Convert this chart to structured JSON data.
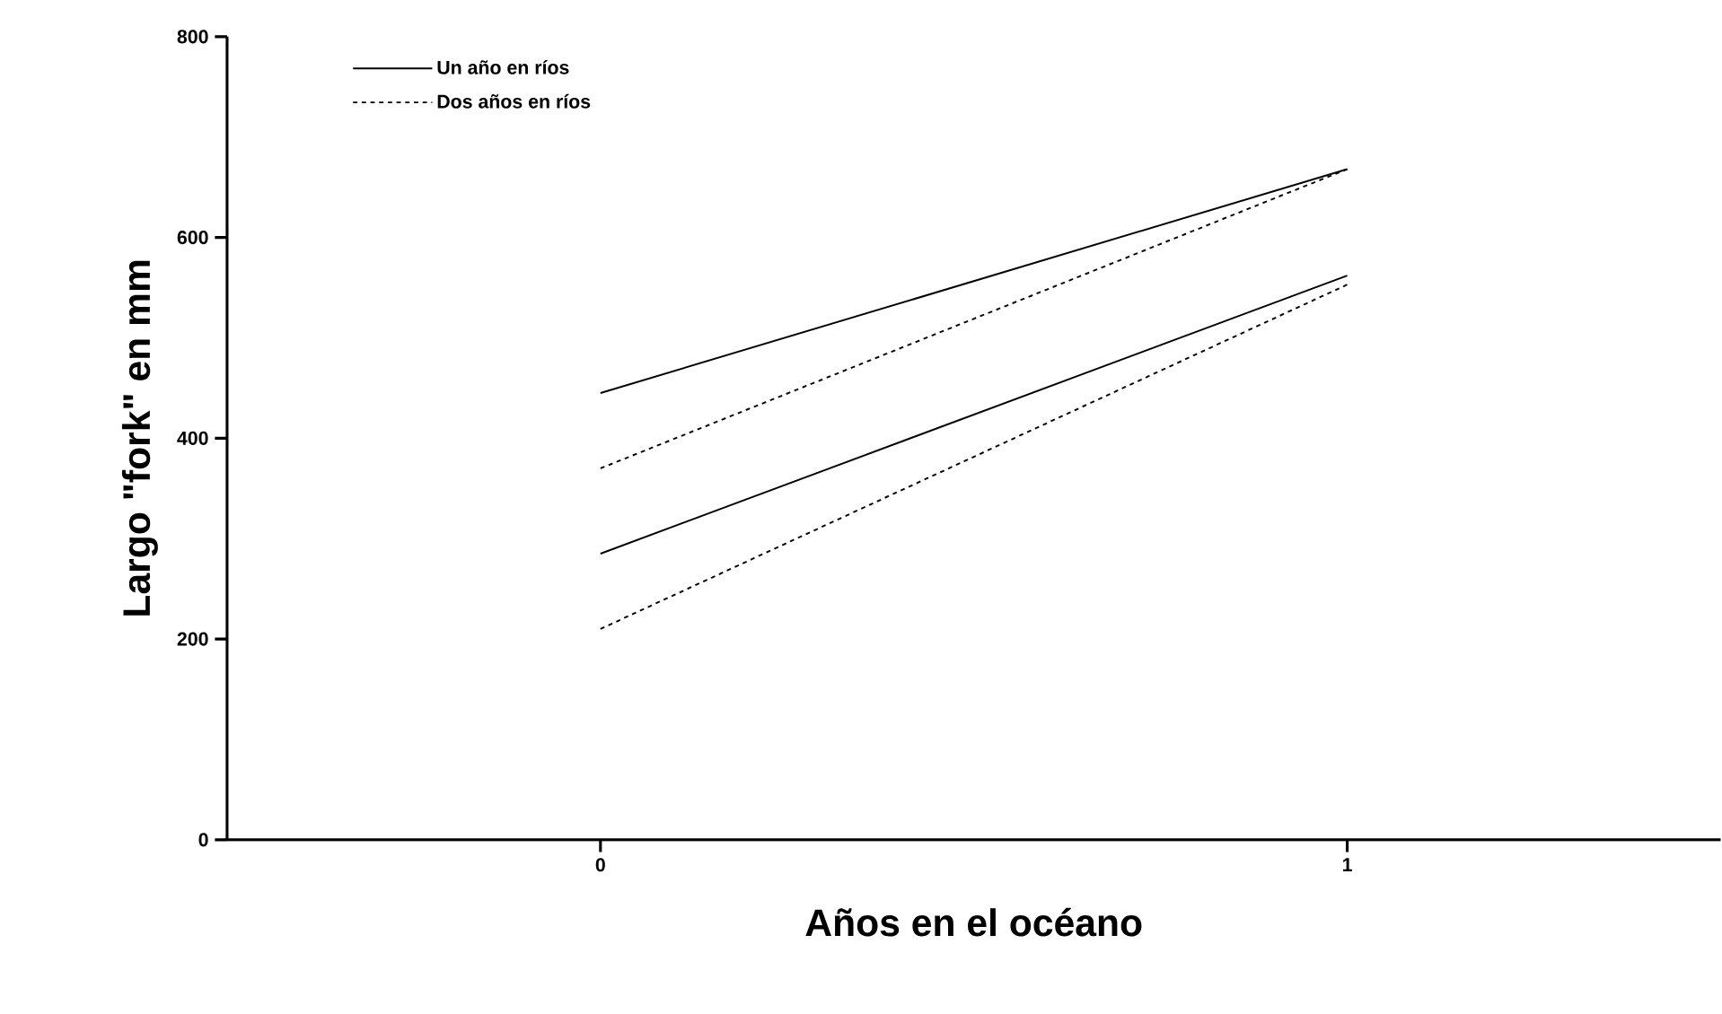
{
  "chart_data": {
    "type": "line",
    "xlabel": "Años en el océano",
    "ylabel": "Largo  \"fork\"  en mm",
    "x": [
      0,
      1
    ],
    "series": [
      {
        "name": "Un año en ríos",
        "color": "#000000",
        "line_style": "solid",
        "values": [
          445,
          668
        ]
      },
      {
        "name": "Dos años en ríos",
        "color": "#000000",
        "line_style": "dotted",
        "values": [
          370,
          668
        ]
      },
      {
        "color": "#000000",
        "line_style": "solid",
        "values": [
          285,
          562
        ]
      },
      {
        "color": "#000000",
        "line_style": "dotted",
        "values": [
          210,
          553
        ]
      }
    ],
    "xlim": [
      -0.5,
      1.5
    ],
    "xticks": [
      0,
      1
    ],
    "ylim": [
      0,
      800
    ],
    "yticks": [
      0,
      200,
      400,
      600,
      800
    ],
    "grid": false,
    "legend": "top left",
    "marker": "none"
  }
}
